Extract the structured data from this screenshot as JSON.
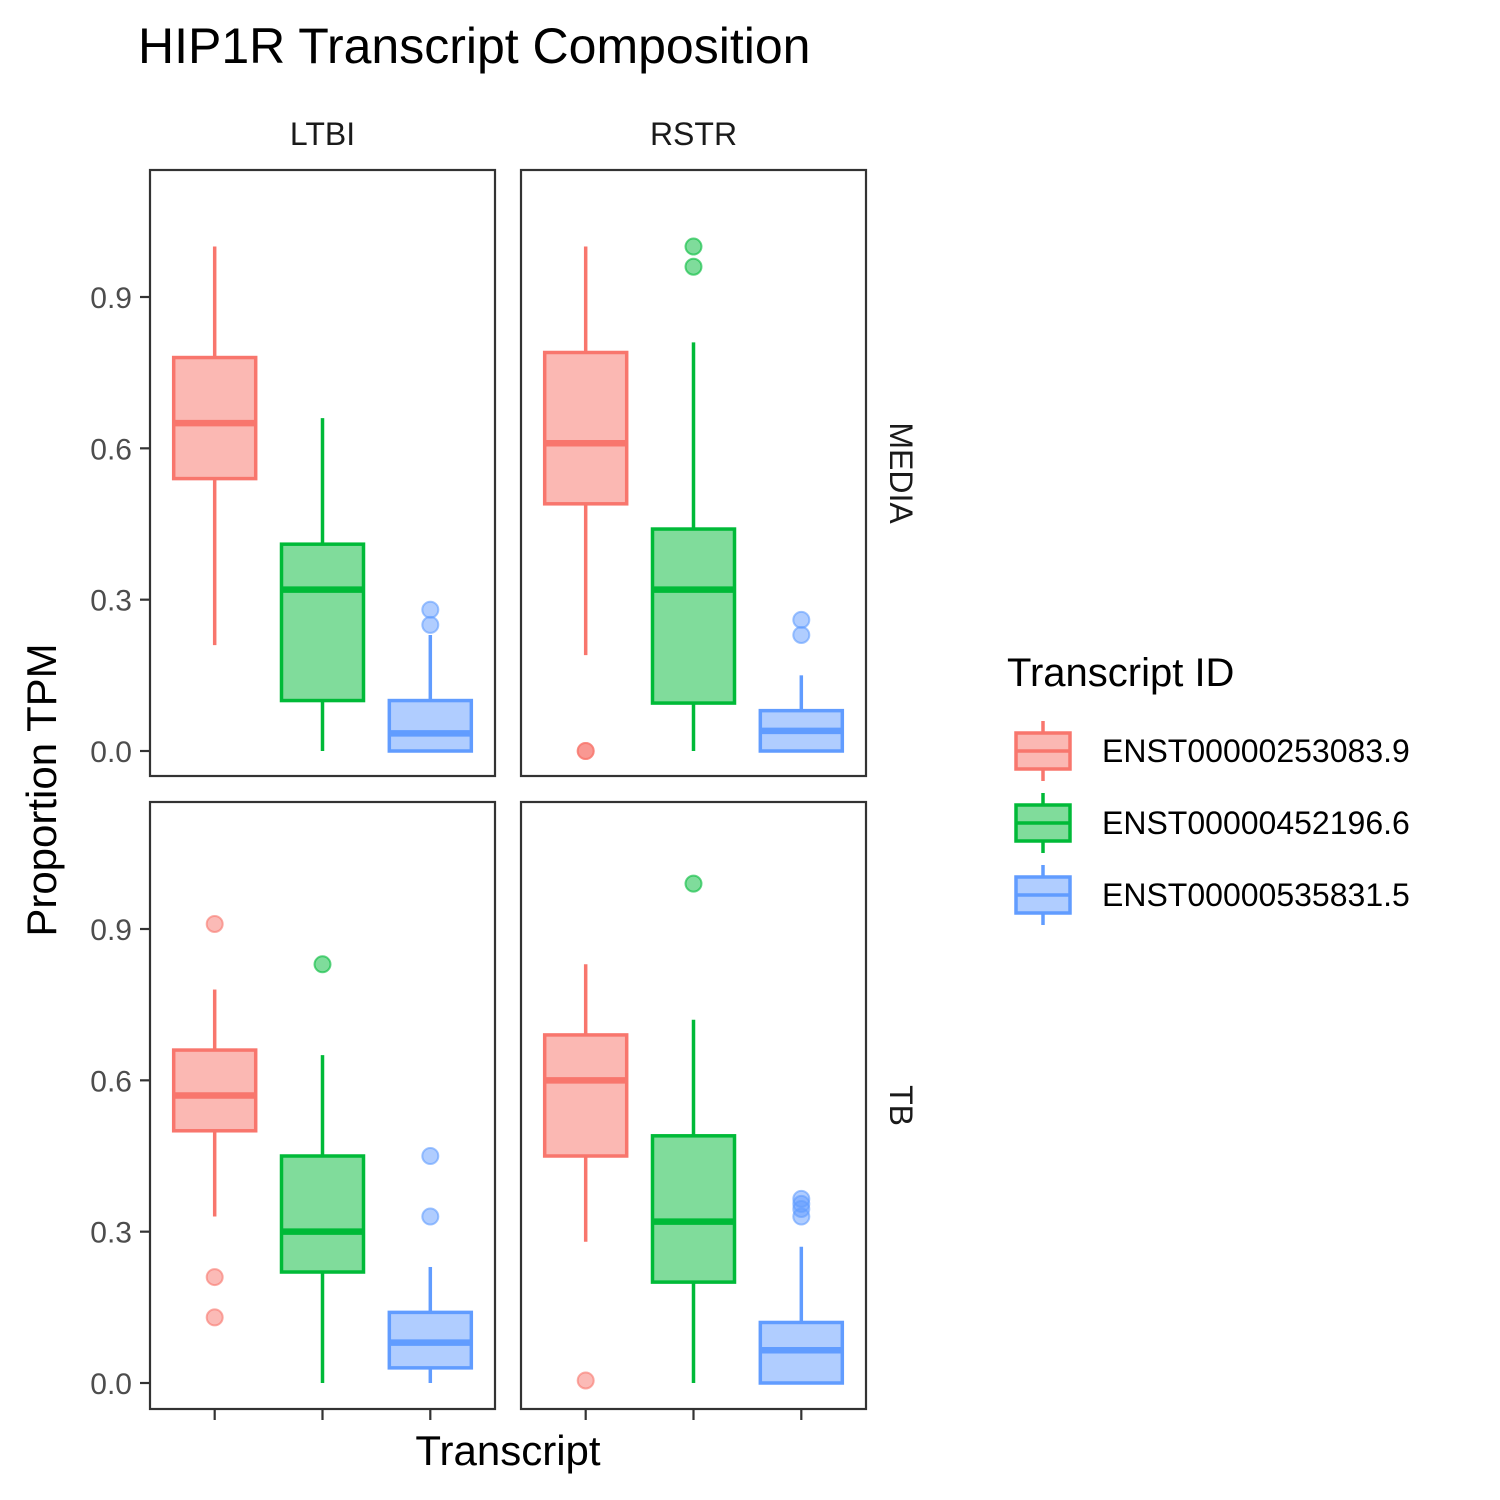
{
  "chart_data": {
    "type": "boxplot",
    "title": "HIP1R Transcript Composition",
    "xlabel": "Transcript",
    "ylabel": "Proportion TPM",
    "ylim": [
      -0.05,
      1.15
    ],
    "yticks": [
      0.0,
      0.3,
      0.6,
      0.9
    ],
    "ytick_labels": [
      "0.0",
      "0.3",
      "0.6",
      "0.9"
    ],
    "grid": false,
    "legend": {
      "title": "Transcript ID",
      "position": "right",
      "entries": [
        {
          "label": "ENST00000253083.9",
          "color": "#F8766D",
          "fill": "#FBB8B3"
        },
        {
          "label": "ENST00000452196.6",
          "color": "#00BA38",
          "fill": "#80DC9B"
        },
        {
          "label": "ENST00000535831.5",
          "color": "#619CFF",
          "fill": "#B0CDFF"
        }
      ]
    },
    "columns": [
      "LTBI",
      "RSTR"
    ],
    "rows": [
      "MEDIA",
      "TB"
    ],
    "panels": [
      {
        "col": "LTBI",
        "row": "MEDIA",
        "boxes": [
          {
            "series": 0,
            "whisker_low": 0.21,
            "q1": 0.54,
            "median": 0.65,
            "q3": 0.78,
            "whisker_high": 1.0,
            "outliers": []
          },
          {
            "series": 1,
            "whisker_low": 0.0,
            "q1": 0.1,
            "median": 0.32,
            "q3": 0.41,
            "whisker_high": 0.66,
            "outliers": []
          },
          {
            "series": 2,
            "whisker_low": 0.0,
            "q1": 0.0,
            "median": 0.035,
            "q3": 0.1,
            "whisker_high": 0.23,
            "outliers": [
              0.25,
              0.28
            ]
          }
        ]
      },
      {
        "col": "RSTR",
        "row": "MEDIA",
        "boxes": [
          {
            "series": 0,
            "whisker_low": 0.19,
            "q1": 0.49,
            "median": 0.61,
            "q3": 0.79,
            "whisker_high": 1.0,
            "outliers": [
              0.0,
              0.0
            ]
          },
          {
            "series": 1,
            "whisker_low": 0.0,
            "q1": 0.095,
            "median": 0.32,
            "q3": 0.44,
            "whisker_high": 0.81,
            "outliers": [
              0.96,
              1.0
            ]
          },
          {
            "series": 2,
            "whisker_low": 0.0,
            "q1": 0.0,
            "median": 0.04,
            "q3": 0.08,
            "whisker_high": 0.15,
            "outliers": [
              0.23,
              0.26
            ]
          }
        ]
      },
      {
        "col": "LTBI",
        "row": "TB",
        "boxes": [
          {
            "series": 0,
            "whisker_low": 0.33,
            "q1": 0.5,
            "median": 0.57,
            "q3": 0.66,
            "whisker_high": 0.78,
            "outliers": [
              0.13,
              0.21,
              0.91
            ]
          },
          {
            "series": 1,
            "whisker_low": 0.0,
            "q1": 0.22,
            "median": 0.3,
            "q3": 0.45,
            "whisker_high": 0.65,
            "outliers": [
              0.83
            ]
          },
          {
            "series": 2,
            "whisker_low": 0.0,
            "q1": 0.03,
            "median": 0.08,
            "q3": 0.14,
            "whisker_high": 0.23,
            "outliers": [
              0.33,
              0.45
            ]
          }
        ]
      },
      {
        "col": "RSTR",
        "row": "TB",
        "boxes": [
          {
            "series": 0,
            "whisker_low": 0.28,
            "q1": 0.45,
            "median": 0.6,
            "q3": 0.69,
            "whisker_high": 0.83,
            "outliers": [
              0.005
            ]
          },
          {
            "series": 1,
            "whisker_low": 0.0,
            "q1": 0.2,
            "median": 0.32,
            "q3": 0.49,
            "whisker_high": 0.72,
            "outliers": [
              0.99
            ]
          },
          {
            "series": 2,
            "whisker_low": 0.0,
            "q1": 0.0,
            "median": 0.065,
            "q3": 0.12,
            "whisker_high": 0.27,
            "outliers": [
              0.33,
              0.345,
              0.355,
              0.365
            ]
          }
        ]
      }
    ]
  }
}
